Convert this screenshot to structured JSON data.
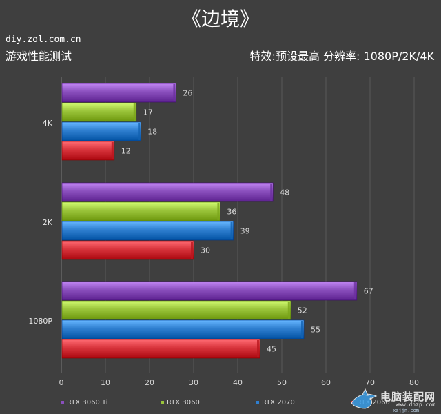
{
  "header": {
    "title": "《边境》",
    "source": "diy.zol.com.cn",
    "subtitle_left": "游戏性能测试",
    "subtitle_right": "特效:预设最高  分辨率: 1080P/2K/4K"
  },
  "watermark": {
    "text": "电脑装配网",
    "url": "www.dnzp.com",
    "url2": "xajjn.com"
  },
  "chart_data": {
    "type": "bar",
    "orientation": "horizontal",
    "title": "",
    "xlabel": "",
    "ylabel": "",
    "categories": [
      "4K",
      "2K",
      "1080P"
    ],
    "series": [
      {
        "name": "RTX 3060 Ti",
        "color": "#8a4fbd",
        "values": [
          26,
          48,
          67
        ]
      },
      {
        "name": "RTX 3060",
        "color": "#9ac43a",
        "values": [
          17,
          36,
          52
        ]
      },
      {
        "name": "RTX 2070",
        "color": "#2f7fd0",
        "values": [
          18,
          39,
          55
        ]
      },
      {
        "name": "RTX 2060",
        "color": "#d8343c",
        "values": [
          12,
          30,
          45
        ]
      }
    ],
    "xlim": [
      0,
      80
    ],
    "xticks": [
      "0",
      "10",
      "20",
      "30",
      "40",
      "50",
      "60",
      "70",
      "80"
    ],
    "grid": true,
    "legend_position": "bottom"
  }
}
